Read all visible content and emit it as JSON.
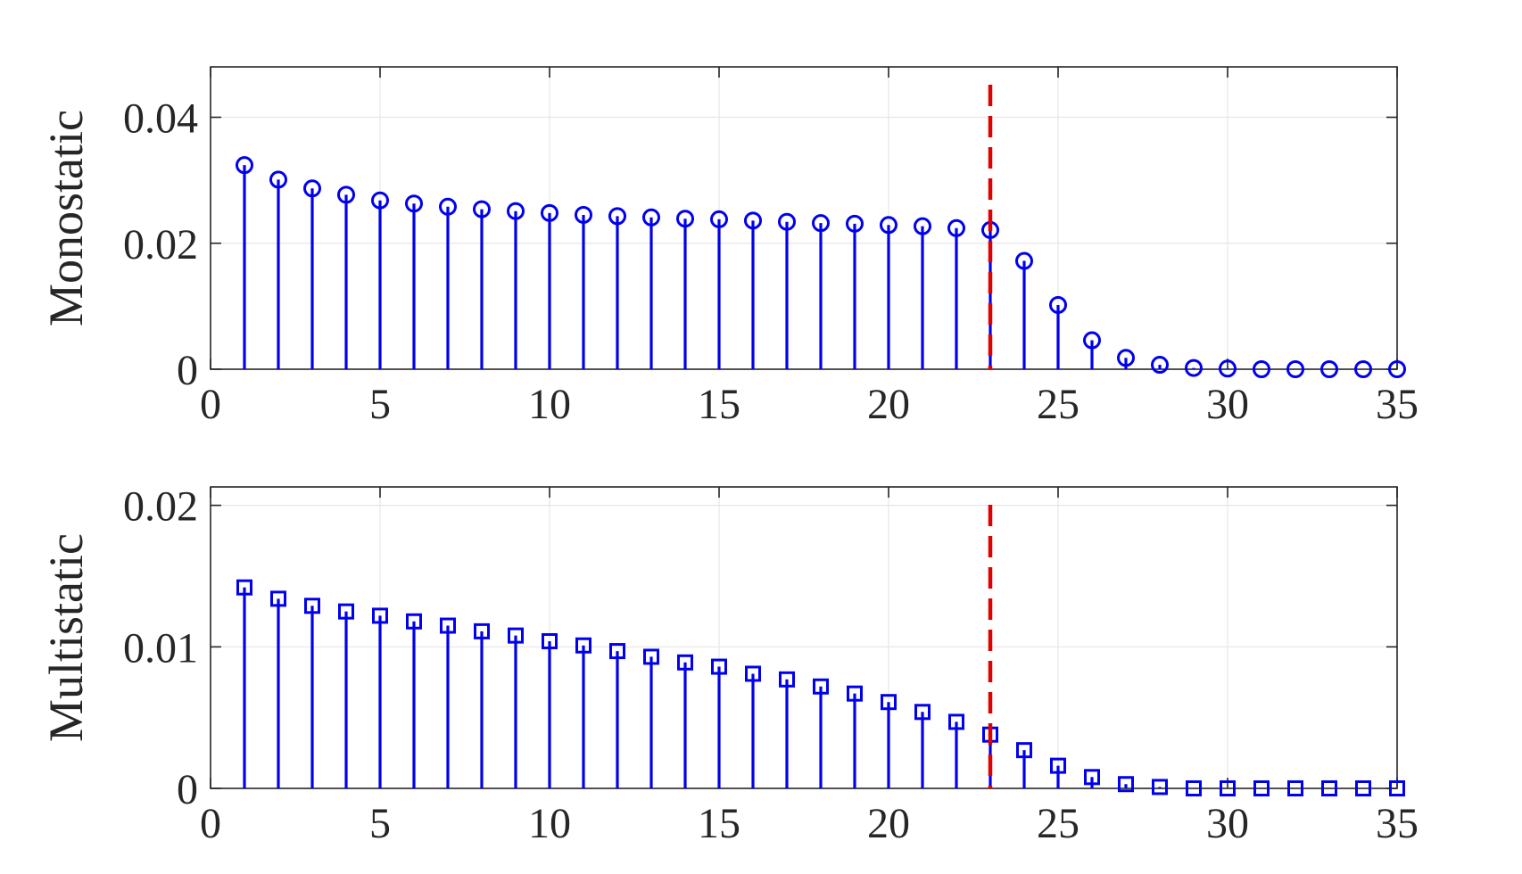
{
  "colors": {
    "stem": "#0000ee",
    "marker": "#0000ee",
    "threshold": "#e00000",
    "axes": "#262626",
    "grid": "#e6e6e6"
  },
  "chart_data": [
    {
      "type": "stem",
      "marker": "circle",
      "ylabel": "Monostatic",
      "xlabel": "",
      "xlim": [
        0,
        35
      ],
      "ylim": [
        0,
        0.048
      ],
      "xticks": [
        0,
        5,
        10,
        15,
        20,
        25,
        30,
        35
      ],
      "yticks": [
        0,
        0.02,
        0.04
      ],
      "xtick_labels": [
        "0",
        "5",
        "10",
        "15",
        "20",
        "25",
        "30",
        "35"
      ],
      "ytick_labels": [
        "0",
        "0.02",
        "0.04"
      ],
      "grid": true,
      "threshold_x": 23,
      "x": [
        1,
        2,
        3,
        4,
        5,
        6,
        7,
        8,
        9,
        10,
        11,
        12,
        13,
        14,
        15,
        16,
        17,
        18,
        19,
        20,
        21,
        22,
        23,
        24,
        25,
        26,
        27,
        28,
        29,
        30,
        31,
        32,
        33,
        34,
        35
      ],
      "y": [
        0.0324,
        0.0301,
        0.0287,
        0.0277,
        0.0268,
        0.0263,
        0.0258,
        0.0254,
        0.0251,
        0.0248,
        0.0245,
        0.0243,
        0.0241,
        0.0239,
        0.0238,
        0.0236,
        0.0234,
        0.0232,
        0.0231,
        0.0229,
        0.0227,
        0.0224,
        0.0221,
        0.0172,
        0.0102,
        0.0046,
        0.0018,
        0.0007,
        0.0002,
        0.0001,
        0.0,
        0.0,
        0.0,
        0.0,
        0.0
      ]
    },
    {
      "type": "stem",
      "marker": "square",
      "ylabel": "Multistatic",
      "xlabel": "",
      "xlim": [
        0,
        35
      ],
      "ylim": [
        0,
        0.0213
      ],
      "xticks": [
        0,
        5,
        10,
        15,
        20,
        25,
        30,
        35
      ],
      "yticks": [
        0,
        0.01,
        0.02
      ],
      "xtick_labels": [
        "0",
        "5",
        "10",
        "15",
        "20",
        "25",
        "30",
        "35"
      ],
      "ytick_labels": [
        "0",
        "0.01",
        "0.02"
      ],
      "grid": true,
      "threshold_x": 23,
      "x": [
        1,
        2,
        3,
        4,
        5,
        6,
        7,
        8,
        9,
        10,
        11,
        12,
        13,
        14,
        15,
        16,
        17,
        18,
        19,
        20,
        21,
        22,
        23,
        24,
        25,
        26,
        27,
        28,
        29,
        30,
        31,
        32,
        33,
        34,
        35
      ],
      "y": [
        0.0142,
        0.0134,
        0.0129,
        0.0125,
        0.0122,
        0.0118,
        0.0115,
        0.0111,
        0.0108,
        0.0104,
        0.0101,
        0.0097,
        0.0093,
        0.0089,
        0.0086,
        0.0081,
        0.0077,
        0.0072,
        0.0067,
        0.0061,
        0.0054,
        0.0047,
        0.0038,
        0.0027,
        0.0016,
        0.0008,
        0.0003,
        0.0001,
        0.0,
        0.0,
        0.0,
        0.0,
        0.0,
        0.0,
        0.0
      ]
    }
  ]
}
